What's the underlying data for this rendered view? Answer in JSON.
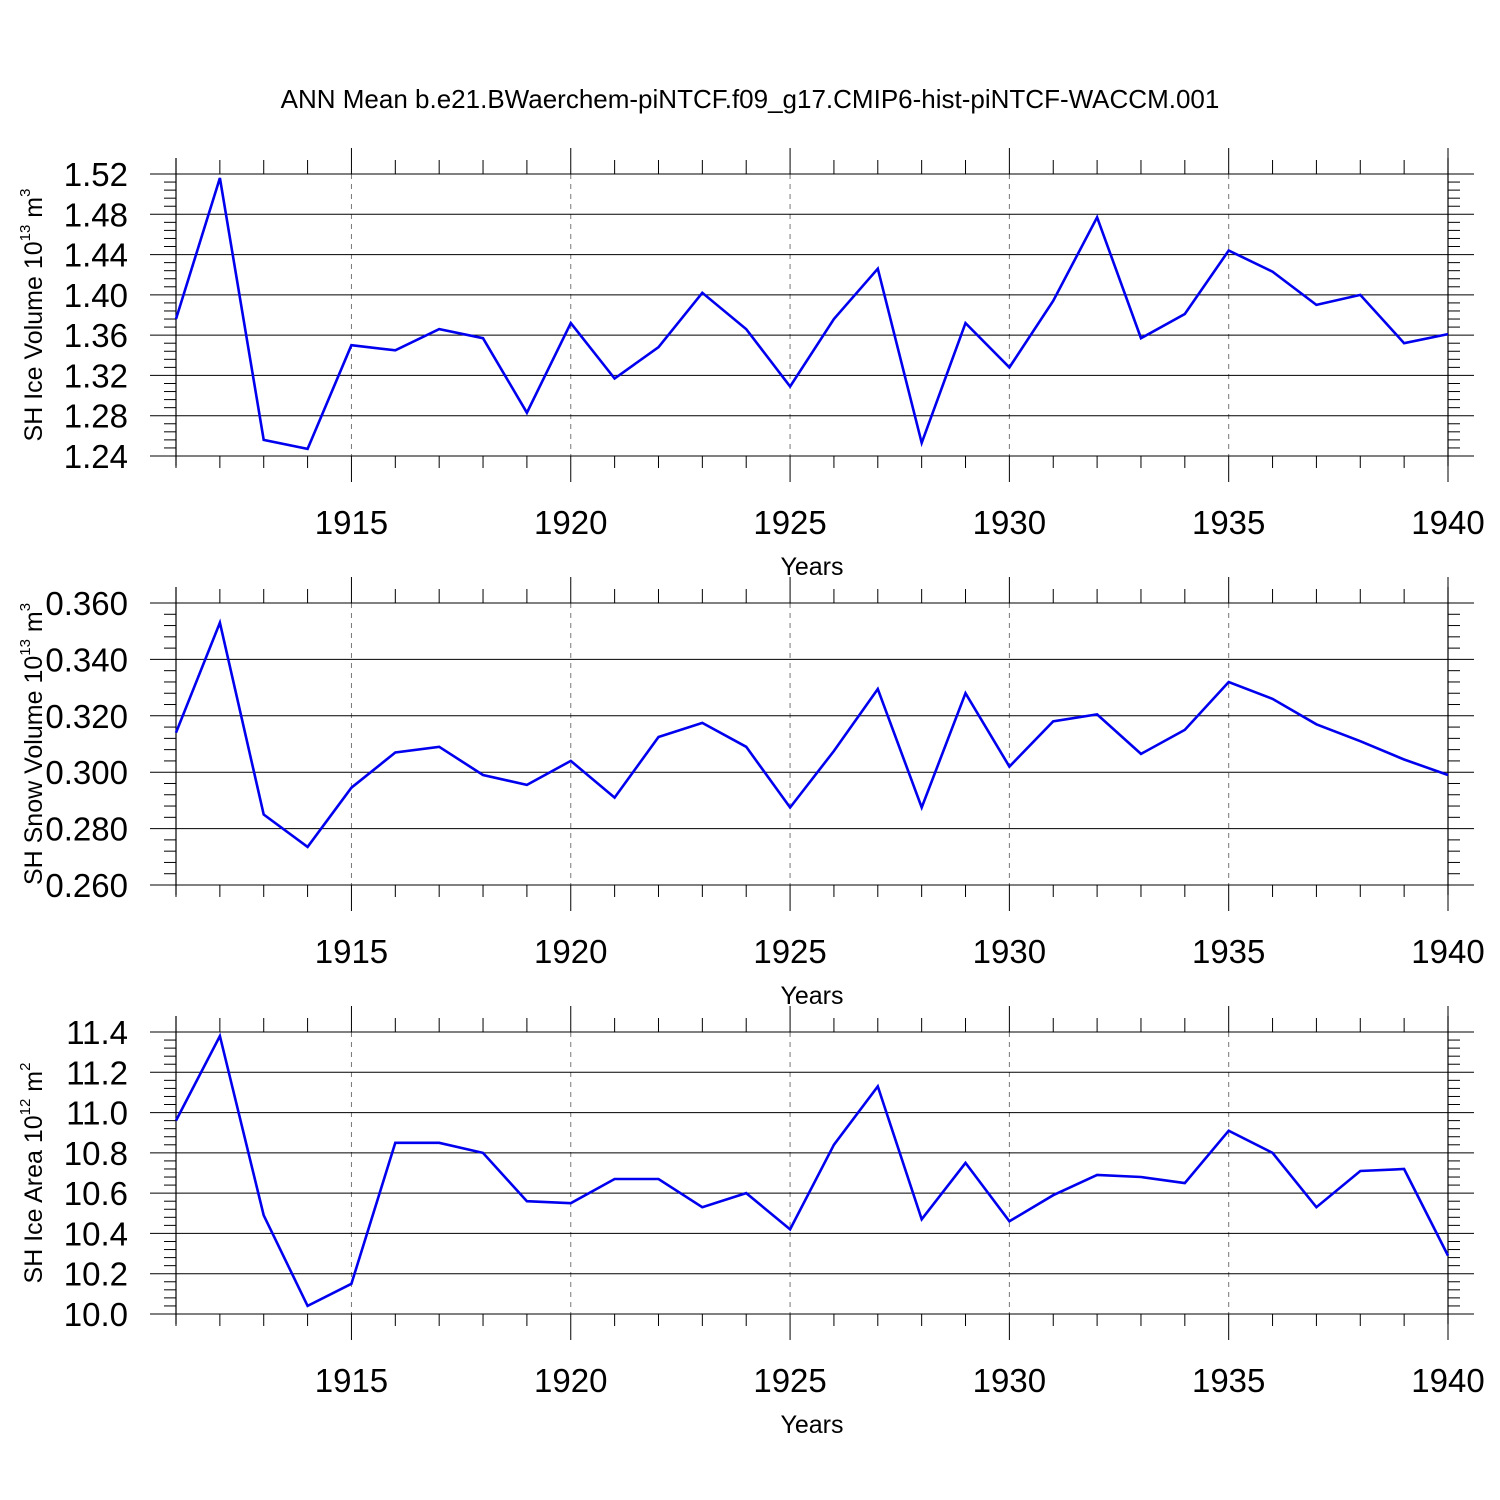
{
  "title": "ANN Mean b.e21.BWaerchem-piNTCF.f09_g17.CMIP6-hist-piNTCF-WACCM.001",
  "colors": {
    "line": "#0000ee",
    "axes": "#000000",
    "grid": "#777777"
  },
  "chart_data": [
    {
      "type": "line",
      "ylabel": {
        "text": "SH Ice Volume 10",
        "exp": "13",
        "unit": " m",
        "unit_exp": "3"
      },
      "xlabel": "Years",
      "xlim": [
        1911,
        1940
      ],
      "ylim": [
        1.24,
        1.52
      ],
      "x_ticks": [
        1915,
        1920,
        1925,
        1930,
        1935,
        1940
      ],
      "y_ticks": [
        "1.24",
        "1.28",
        "1.32",
        "1.36",
        "1.40",
        "1.44",
        "1.48",
        "1.52"
      ],
      "series": [
        {
          "values": [
            1.376,
            1.516,
            1.256,
            1.247,
            1.35,
            1.345,
            1.366,
            1.357,
            1.283,
            1.372,
            1.317,
            1.348,
            1.402,
            1.366,
            1.309,
            1.376,
            1.426,
            1.253,
            1.372,
            1.328,
            1.394,
            1.477,
            1.357,
            1.381,
            1.444,
            1.423,
            1.39,
            1.4,
            1.352,
            1.361
          ]
        }
      ],
      "x": [
        1911,
        1912,
        1913,
        1914,
        1915,
        1916,
        1917,
        1918,
        1919,
        1920,
        1921,
        1922,
        1923,
        1924,
        1925,
        1926,
        1927,
        1928,
        1929,
        1930,
        1931,
        1932,
        1933,
        1934,
        1935,
        1936,
        1937,
        1938,
        1939,
        1940
      ]
    },
    {
      "type": "line",
      "ylabel": {
        "text": "SH Snow Volume 10",
        "exp": "13",
        "unit": " m",
        "unit_exp": "3"
      },
      "xlabel": "Years",
      "xlim": [
        1911,
        1940
      ],
      "ylim": [
        0.26,
        0.36
      ],
      "x_ticks": [
        1915,
        1920,
        1925,
        1930,
        1935,
        1940
      ],
      "y_ticks": [
        "0.260",
        "0.280",
        "0.300",
        "0.320",
        "0.340",
        "0.360"
      ],
      "series": [
        {
          "values": [
            0.314,
            0.353,
            0.285,
            0.2735,
            0.2945,
            0.307,
            0.309,
            0.299,
            0.2955,
            0.304,
            0.291,
            0.3125,
            0.3175,
            0.309,
            0.2875,
            0.3075,
            0.3295,
            0.2875,
            0.328,
            0.302,
            0.318,
            0.3205,
            0.3065,
            0.315,
            0.332,
            0.326,
            0.317,
            0.311,
            0.3045,
            0.299
          ]
        }
      ],
      "x": [
        1911,
        1912,
        1913,
        1914,
        1915,
        1916,
        1917,
        1918,
        1919,
        1920,
        1921,
        1922,
        1923,
        1924,
        1925,
        1926,
        1927,
        1928,
        1929,
        1930,
        1931,
        1932,
        1933,
        1934,
        1935,
        1936,
        1937,
        1938,
        1939,
        1940
      ]
    },
    {
      "type": "line",
      "ylabel": {
        "text": "SH Ice Area 10",
        "exp": "12",
        "unit": " m",
        "unit_exp": "2"
      },
      "xlabel": "Years",
      "xlim": [
        1911,
        1940
      ],
      "ylim": [
        10.0,
        11.4
      ],
      "x_ticks": [
        1915,
        1920,
        1925,
        1930,
        1935,
        1940
      ],
      "y_ticks": [
        "10.0",
        "10.2",
        "10.4",
        "10.6",
        "10.8",
        "11.0",
        "11.2",
        "11.4"
      ],
      "series": [
        {
          "values": [
            10.96,
            11.38,
            10.49,
            10.04,
            10.15,
            10.85,
            10.85,
            10.8,
            10.56,
            10.55,
            10.67,
            10.67,
            10.53,
            10.6,
            10.42,
            10.84,
            11.13,
            10.47,
            10.75,
            10.46,
            10.59,
            10.69,
            10.68,
            10.65,
            10.91,
            10.8,
            10.53,
            10.71,
            10.72,
            10.29
          ]
        }
      ],
      "x": [
        1911,
        1912,
        1913,
        1914,
        1915,
        1916,
        1917,
        1918,
        1919,
        1920,
        1921,
        1922,
        1923,
        1924,
        1925,
        1926,
        1927,
        1928,
        1929,
        1930,
        1931,
        1932,
        1933,
        1934,
        1935,
        1936,
        1937,
        1938,
        1939,
        1940
      ]
    }
  ]
}
